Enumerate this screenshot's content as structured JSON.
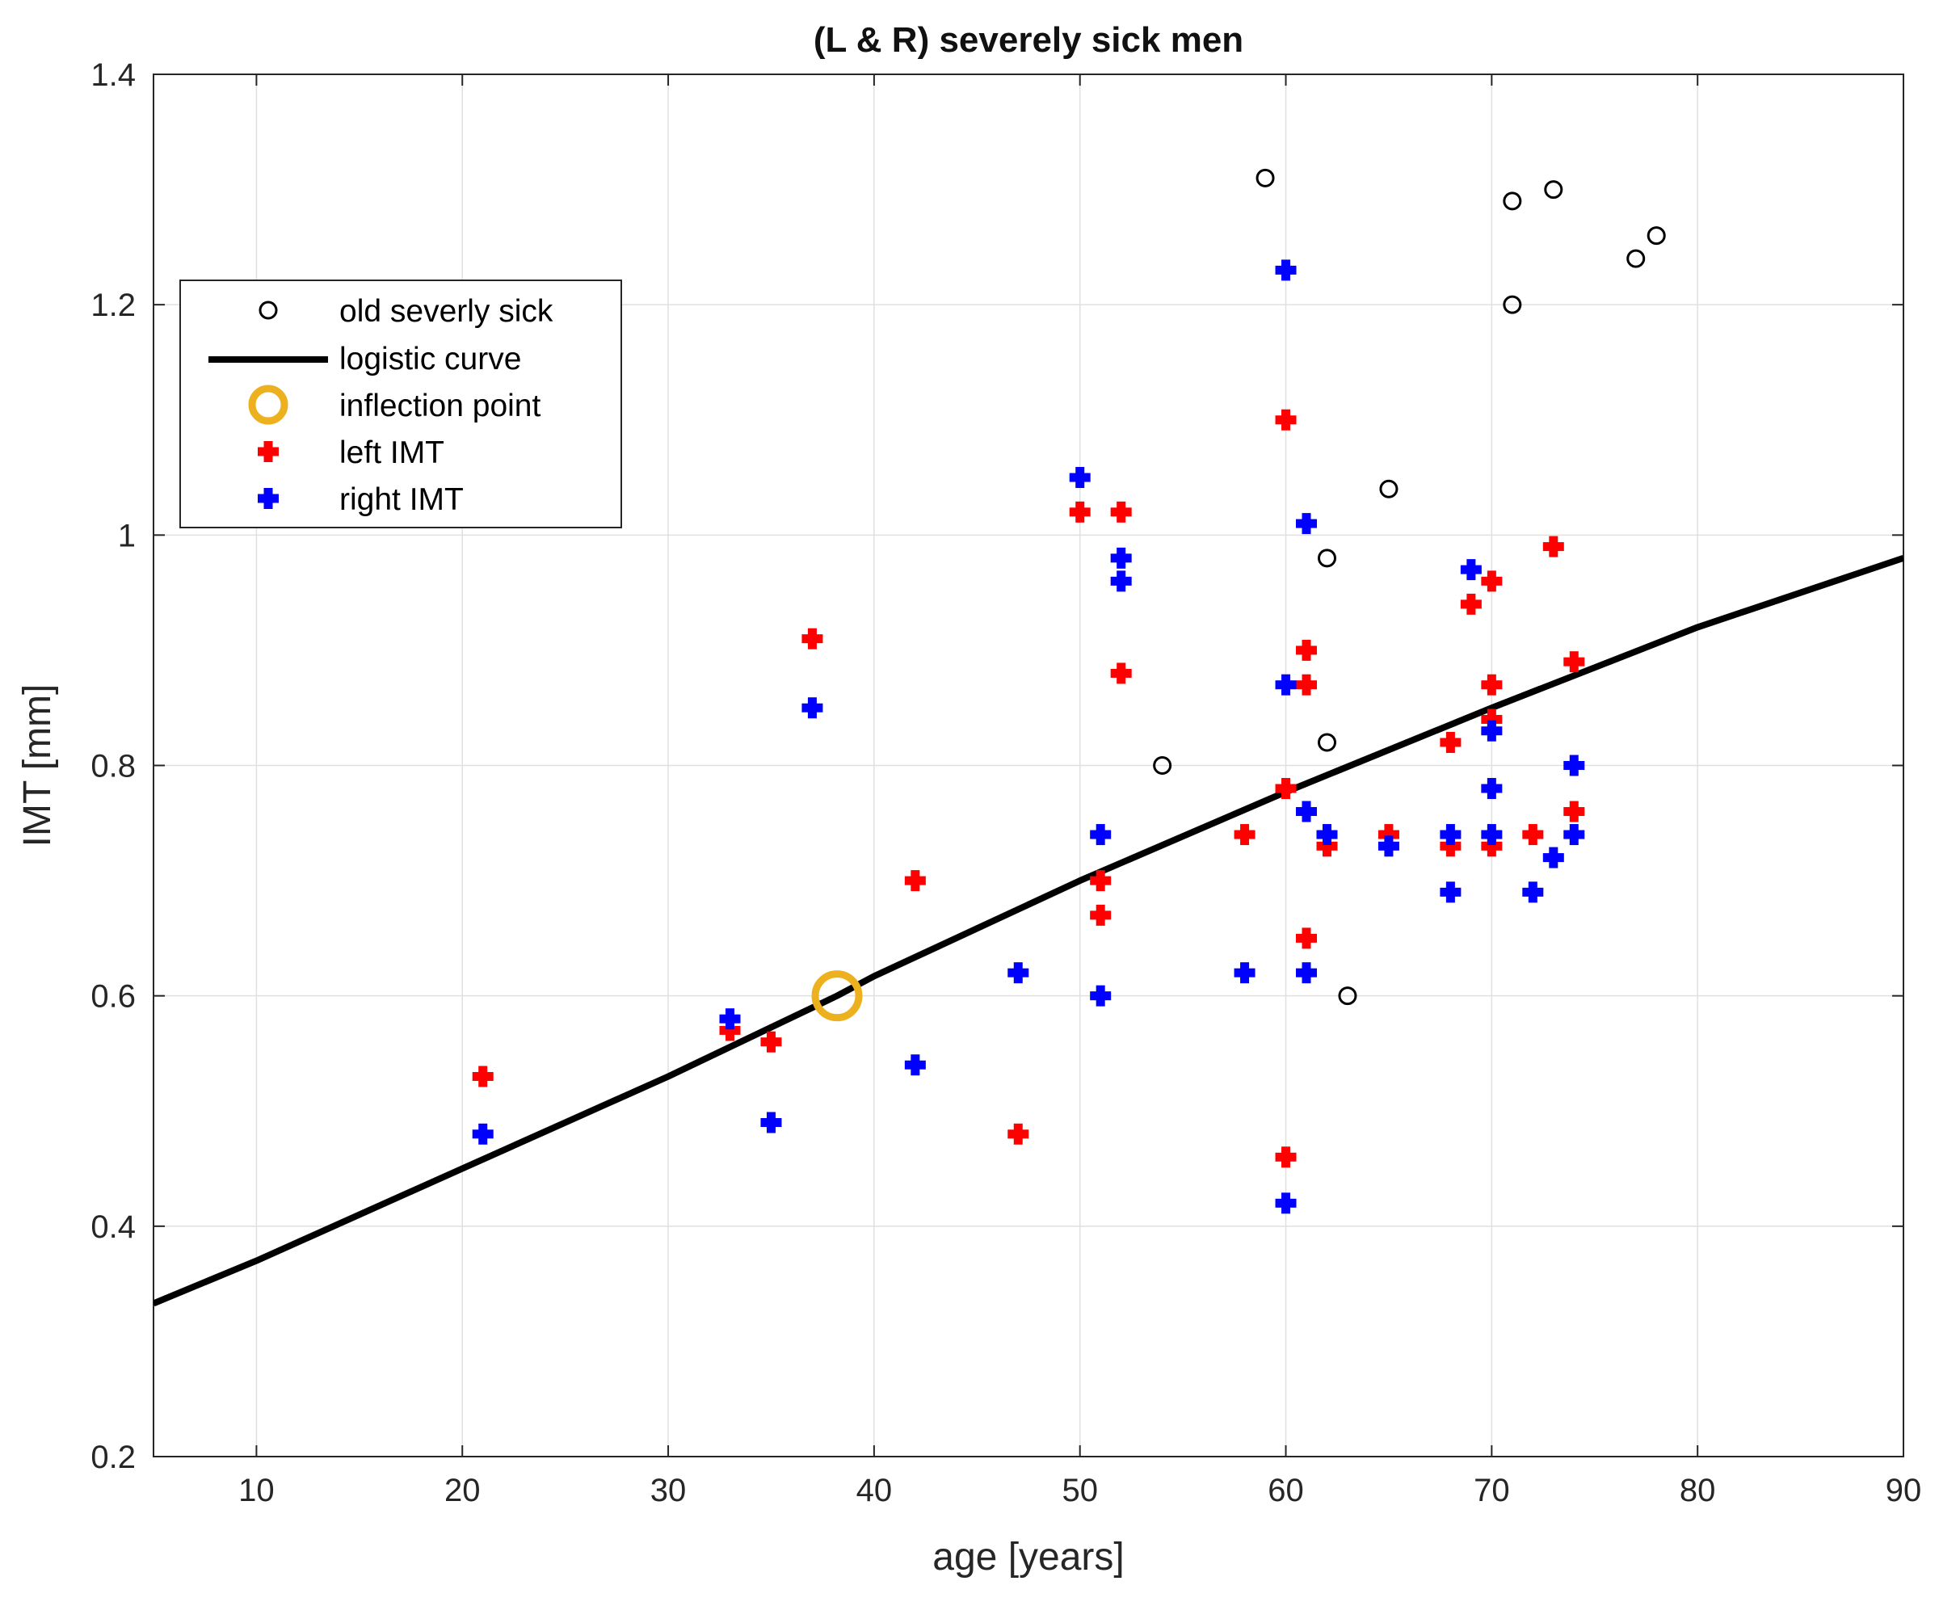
{
  "chart_data": {
    "type": "scatter",
    "title": "(L & R) severely sick men",
    "xlabel": "age [years]",
    "ylabel": "IMT [mm]",
    "xlim": [
      5,
      90
    ],
    "ylim": [
      0.2,
      1.4
    ],
    "xticks": [
      10,
      20,
      30,
      40,
      50,
      60,
      70,
      80,
      90
    ],
    "yticks": [
      0.2,
      0.4,
      0.6,
      0.8,
      1.0,
      1.2,
      1.4
    ],
    "xtick_labels": [
      "10",
      "20",
      "30",
      "40",
      "50",
      "60",
      "70",
      "80",
      "90"
    ],
    "ytick_labels": [
      "0.2",
      "0.4",
      "0.6",
      "0.8",
      "1",
      "1.2",
      "1.4"
    ],
    "grid": true,
    "legend_position": "upper-left",
    "colors": {
      "old": "#000000",
      "curve": "#000000",
      "inflection": "#EDB120",
      "left": "#FF0000",
      "right": "#0000FF"
    },
    "series": [
      {
        "name": "old severly sick",
        "marker": "circle",
        "points": [
          [
            54,
            0.8
          ],
          [
            59,
            1.31
          ],
          [
            62,
            0.98
          ],
          [
            62,
            0.82
          ],
          [
            63,
            0.6
          ],
          [
            65,
            1.04
          ],
          [
            71,
            1.29
          ],
          [
            71,
            1.2
          ],
          [
            73,
            1.3
          ],
          [
            77,
            1.24
          ],
          [
            78,
            1.26
          ]
        ]
      },
      {
        "name": "logistic curve",
        "marker": "line",
        "points": [
          [
            5,
            0.333
          ],
          [
            10,
            0.37
          ],
          [
            20,
            0.45
          ],
          [
            30,
            0.53
          ],
          [
            38.2,
            0.6
          ],
          [
            40,
            0.617
          ],
          [
            50,
            0.7
          ],
          [
            60,
            0.777
          ],
          [
            70,
            0.85
          ],
          [
            80,
            0.92
          ],
          [
            90,
            0.98
          ]
        ]
      },
      {
        "name": "inflection point",
        "marker": "ring",
        "points": [
          [
            38.2,
            0.6
          ]
        ]
      },
      {
        "name": "left IMT",
        "marker": "plus",
        "points": [
          [
            21,
            0.53
          ],
          [
            33,
            0.57
          ],
          [
            35,
            0.56
          ],
          [
            37,
            0.91
          ],
          [
            42,
            0.7
          ],
          [
            47,
            0.48
          ],
          [
            50,
            1.02
          ],
          [
            51,
            0.7
          ],
          [
            51,
            0.67
          ],
          [
            52,
            1.02
          ],
          [
            52,
            0.88
          ],
          [
            58,
            0.74
          ],
          [
            60,
            1.1
          ],
          [
            60,
            0.78
          ],
          [
            60,
            0.46
          ],
          [
            61,
            0.9
          ],
          [
            61,
            0.87
          ],
          [
            61,
            0.65
          ],
          [
            62,
            0.73
          ],
          [
            65,
            0.74
          ],
          [
            68,
            0.82
          ],
          [
            68,
            0.73
          ],
          [
            69,
            0.94
          ],
          [
            70,
            0.96
          ],
          [
            70,
            0.87
          ],
          [
            70,
            0.84
          ],
          [
            70,
            0.73
          ],
          [
            72,
            0.74
          ],
          [
            73,
            0.99
          ],
          [
            74,
            0.89
          ],
          [
            74,
            0.76
          ]
        ]
      },
      {
        "name": "right IMT",
        "marker": "plus",
        "points": [
          [
            21,
            0.48
          ],
          [
            33,
            0.58
          ],
          [
            35,
            0.49
          ],
          [
            37,
            0.85
          ],
          [
            42,
            0.54
          ],
          [
            47,
            0.62
          ],
          [
            50,
            1.05
          ],
          [
            51,
            0.74
          ],
          [
            51,
            0.6
          ],
          [
            52,
            0.98
          ],
          [
            52,
            0.96
          ],
          [
            58,
            0.62
          ],
          [
            60,
            1.23
          ],
          [
            60,
            0.87
          ],
          [
            60,
            0.42
          ],
          [
            61,
            1.01
          ],
          [
            61,
            0.76
          ],
          [
            61,
            0.62
          ],
          [
            62,
            0.74
          ],
          [
            65,
            0.73
          ],
          [
            68,
            0.74
          ],
          [
            68,
            0.69
          ],
          [
            69,
            0.97
          ],
          [
            70,
            0.83
          ],
          [
            70,
            0.78
          ],
          [
            70,
            0.74
          ],
          [
            72,
            0.69
          ],
          [
            73,
            0.72
          ],
          [
            74,
            0.8
          ],
          [
            74,
            0.74
          ]
        ]
      }
    ]
  }
}
